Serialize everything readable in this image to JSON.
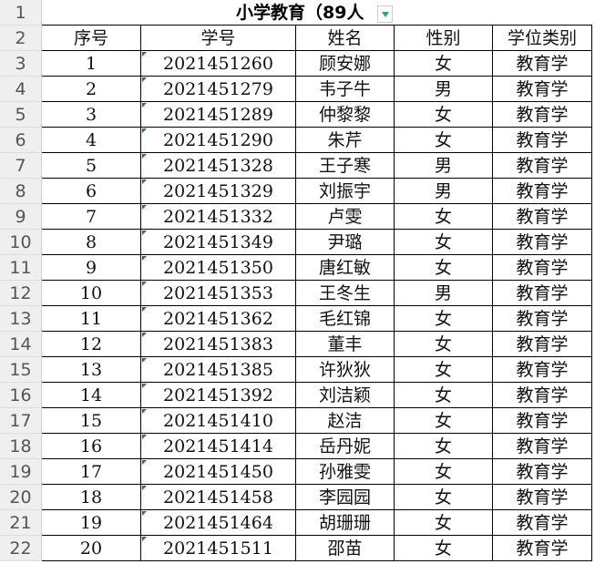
{
  "title": "小学教育（89人",
  "headers": [
    "序号",
    "学号",
    "姓名",
    "性别",
    "学位类别"
  ],
  "row_numbers": [
    "1",
    "2",
    "3",
    "4",
    "5",
    "6",
    "7",
    "8",
    "9",
    "10",
    "11",
    "12",
    "13",
    "14",
    "15",
    "16",
    "17",
    "18",
    "19",
    "20",
    "21",
    "22"
  ],
  "rows": [
    [
      "1",
      "2021451260",
      "顾安娜",
      "女",
      "教育学"
    ],
    [
      "2",
      "2021451279",
      "韦子牛",
      "男",
      "教育学"
    ],
    [
      "3",
      "2021451289",
      "仲黎黎",
      "女",
      "教育学"
    ],
    [
      "4",
      "2021451290",
      "朱芹",
      "女",
      "教育学"
    ],
    [
      "5",
      "2021451328",
      "王子寒",
      "男",
      "教育学"
    ],
    [
      "6",
      "2021451329",
      "刘振宇",
      "男",
      "教育学"
    ],
    [
      "7",
      "2021451332",
      "卢雯",
      "女",
      "教育学"
    ],
    [
      "8",
      "2021451349",
      "尹璐",
      "女",
      "教育学"
    ],
    [
      "9",
      "2021451350",
      "唐红敏",
      "女",
      "教育学"
    ],
    [
      "10",
      "2021451353",
      "王冬生",
      "男",
      "教育学"
    ],
    [
      "11",
      "2021451362",
      "毛红锦",
      "女",
      "教育学"
    ],
    [
      "12",
      "2021451383",
      "董丰",
      "女",
      "教育学"
    ],
    [
      "13",
      "2021451385",
      "许狄狄",
      "女",
      "教育学"
    ],
    [
      "14",
      "2021451392",
      "刘洁颖",
      "女",
      "教育学"
    ],
    [
      "15",
      "2021451410",
      "赵洁",
      "女",
      "教育学"
    ],
    [
      "16",
      "2021451414",
      "岳丹妮",
      "女",
      "教育学"
    ],
    [
      "17",
      "2021451450",
      "孙雅雯",
      "女",
      "教育学"
    ],
    [
      "18",
      "2021451458",
      "李园园",
      "女",
      "教育学"
    ],
    [
      "19",
      "2021451464",
      "胡珊珊",
      "女",
      "教育学"
    ],
    [
      "20",
      "2021451511",
      "邵苗",
      "女",
      "教育学"
    ]
  ],
  "colors": {
    "filter_arrow": "#1fa866",
    "error_marker": "#1a7f3a",
    "row_header_bg": "#efefef"
  }
}
